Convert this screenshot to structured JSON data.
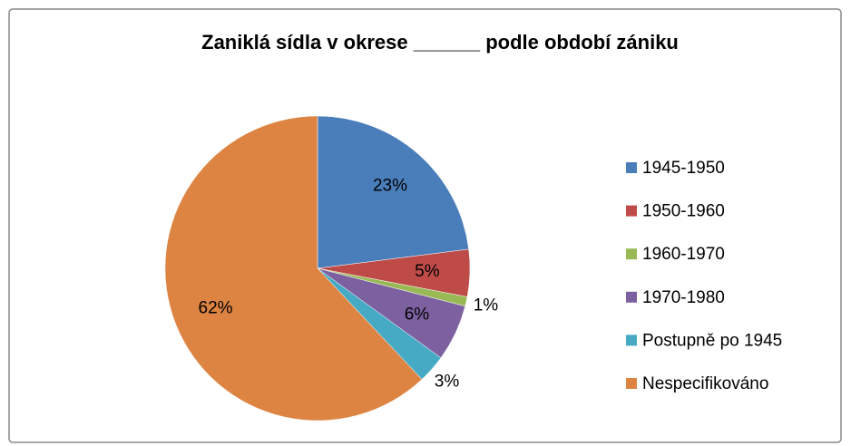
{
  "chart_data": {
    "type": "pie",
    "title": "Zaniklá sídla v okrese ______ podle období zániku",
    "categories": [
      "1945-1950",
      "1950-1960",
      "1960-1970",
      "1970-1980",
      "Postupně po 1945",
      "Nespecifikováno"
    ],
    "values": [
      23,
      5,
      1,
      6,
      3,
      62
    ],
    "value_labels": [
      "23%",
      "5%",
      "1%",
      "6%",
      "3%",
      "62%"
    ],
    "colors": [
      "#4a7ebb",
      "#be4b48",
      "#98b954",
      "#7d60a0",
      "#46aac5",
      "#dd8443"
    ],
    "legend": "right"
  }
}
